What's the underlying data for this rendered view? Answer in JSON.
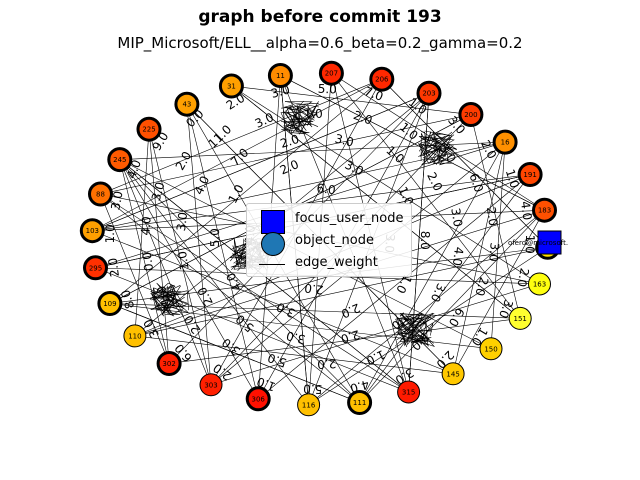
{
  "title": "graph before commit 193",
  "subtitle": "MIP_Microsoft/ELL__alpha=0.6_beta=0.2_gamma=0.2",
  "legend": {
    "focus_label": "focus_user_node",
    "object_label": "object_node",
    "edge_label": "edge_weight"
  },
  "focus_node": {
    "label": "oferd@microsoft.",
    "color": "#0000ff"
  },
  "nodes": [
    {
      "id": "11",
      "color": "#ff8c00"
    },
    {
      "id": "207",
      "color": "#ff2800"
    },
    {
      "id": "206",
      "color": "#ff2800"
    },
    {
      "id": "203",
      "color": "#ff3800"
    },
    {
      "id": "200",
      "color": "#ff3c00"
    },
    {
      "id": "16",
      "color": "#ff9000"
    },
    {
      "id": "191",
      "color": "#ff4600"
    },
    {
      "id": "183",
      "color": "#ff5000"
    },
    {
      "id": "3",
      "color": "#ffe000"
    },
    {
      "id": "163",
      "color": "#ffff10"
    },
    {
      "id": "151",
      "color": "#ffff30"
    },
    {
      "id": "150",
      "color": "#ffd000"
    },
    {
      "id": "145",
      "color": "#ffc800"
    },
    {
      "id": "315",
      "color": "#ff1a00"
    },
    {
      "id": "111",
      "color": "#ffc000"
    },
    {
      "id": "116",
      "color": "#ffc000"
    },
    {
      "id": "306",
      "color": "#ff1000"
    },
    {
      "id": "303",
      "color": "#ff2000"
    },
    {
      "id": "302",
      "color": "#ff2000"
    },
    {
      "id": "110",
      "color": "#ffc000"
    },
    {
      "id": "109",
      "color": "#ffc000"
    },
    {
      "id": "295",
      "color": "#ff3000"
    },
    {
      "id": "103",
      "color": "#ffa000"
    },
    {
      "id": "88",
      "color": "#ff7000"
    },
    {
      "id": "245",
      "color": "#ff5a00"
    },
    {
      "id": "225",
      "color": "#ff5000"
    },
    {
      "id": "43",
      "color": "#ffa000"
    },
    {
      "id": "31",
      "color": "#ffa000"
    }
  ],
  "edge_weight_labels": [
    "1.0",
    "2.0",
    "3.0",
    "1.0",
    "2.0",
    "3.0",
    "4.0",
    "5.0",
    "1.0",
    "2.0",
    "6.0",
    "3.0",
    "8.0",
    "2.0",
    "1.0",
    "3.0",
    "4.0",
    "9.0",
    "0.0",
    "2.0",
    "3.0",
    "5.0",
    "7.0",
    "1.0",
    "3.0",
    "2.0",
    "1.0",
    "4.0",
    "3.0",
    "2.0",
    "6.0",
    "3.0",
    "1.0",
    "2.0",
    "5.0",
    "3.0",
    "2.0",
    "1.0",
    "0.0",
    "4.0",
    "3.0",
    "2.0",
    "11.0",
    "3.0",
    "1.0",
    "2.0",
    "1.0",
    "3.0",
    "6.0",
    "2.0",
    "4.0",
    "3.0",
    "1.0",
    "2.0",
    "3.0",
    "5.0",
    "2.0",
    "1.0",
    "3.0",
    "4.0",
    "7.0",
    "2.0",
    "3.0",
    "1.0",
    "2.0",
    "3.0",
    "8.0",
    "1.0",
    "2.0",
    "3.0",
    "4.0",
    "5.0",
    "1.0",
    "2.0",
    "3.0",
    "1.0",
    "3.0",
    "2.0",
    "4.0",
    "6.0"
  ]
}
